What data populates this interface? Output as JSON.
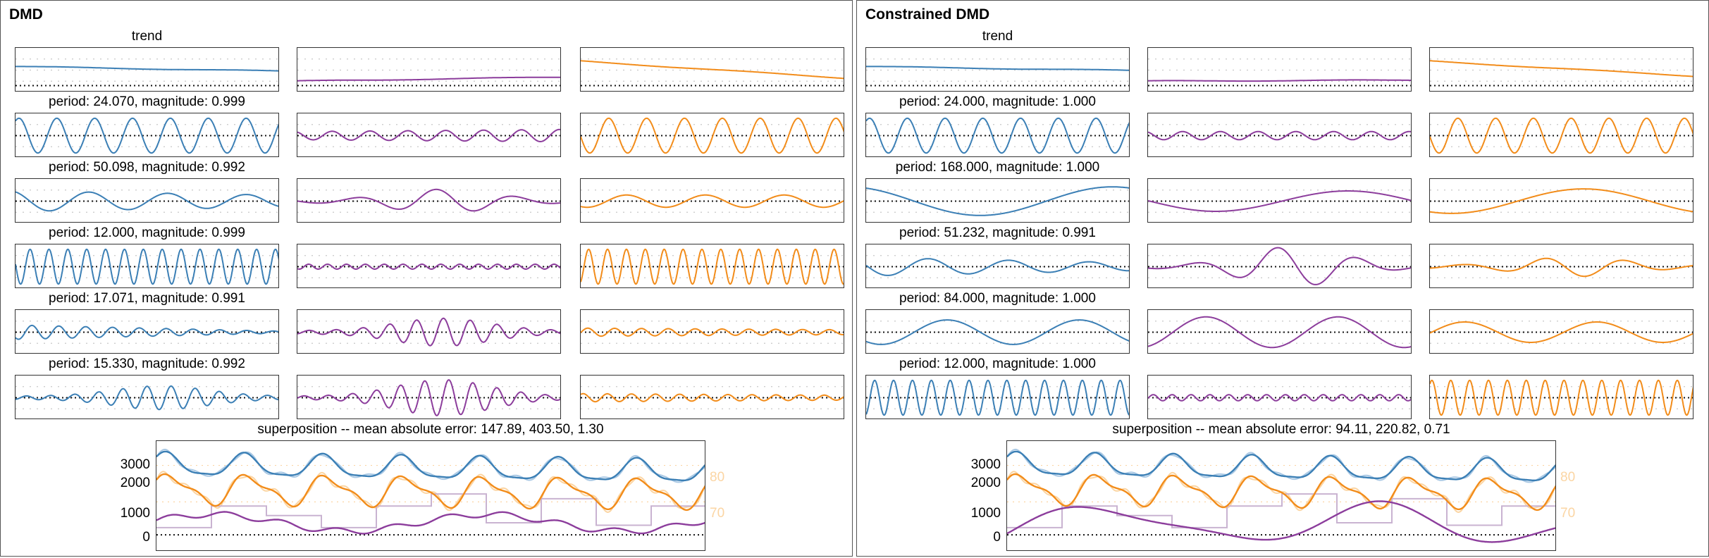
{
  "panels": [
    {
      "title": "DMD",
      "rows": [
        {
          "label": "trend",
          "kind": "trend",
          "trend": [
            [
              0.18,
              -0.05
            ],
            [
              -0.55,
              -0.35
            ],
            [
              0.45,
              -0.4
            ]
          ]
        },
        {
          "label": "period: 24.070, magnitude: 0.999",
          "period": 24.07,
          "amps": [
            [
              0.85,
              0.85
            ],
            [
              0.2,
              0.3
            ],
            [
              0.85,
              0.85
            ]
          ]
        },
        {
          "label": "period: 50.098, magnitude: 0.992",
          "period": 50.098,
          "amps": [
            [
              0.5,
              0.3
            ],
            [
              0.15,
              0.5
            ],
            [
              0.3,
              0.3
            ]
          ]
        },
        {
          "label": "period: 12.000, magnitude: 0.999",
          "period": 12.0,
          "amps": [
            [
              0.85,
              0.85
            ],
            [
              0.12,
              0.12
            ],
            [
              0.85,
              0.85
            ]
          ]
        },
        {
          "label": "period: 17.071, magnitude: 0.991",
          "period": 17.071,
          "amps": [
            [
              0.35,
              0.05
            ],
            [
              0.15,
              0.6
            ],
            [
              0.2,
              0.12
            ]
          ]
        },
        {
          "label": "period: 15.330, magnitude: 0.992",
          "period": 15.33,
          "amps": [
            [
              0.5,
              0.03
            ],
            [
              0.15,
              0.8
            ],
            [
              0.2,
              0.12
            ]
          ]
        }
      ],
      "super": {
        "label": "superposition -- mean absolute error: 147.89, 403.50, 1.30",
        "yticks": [
          {
            "v": 3000,
            "t": "3000"
          },
          {
            "v": 2000,
            "t": "2000"
          },
          {
            "v": 1000,
            "t": "1000"
          },
          {
            "v": 0,
            "t": "0"
          }
        ],
        "rticks": [
          {
            "v": 80,
            "t": "80"
          },
          {
            "v": 70,
            "t": "70"
          }
        ],
        "ylim": [
          -700,
          3900
        ]
      }
    },
    {
      "title": "Constrained DMD",
      "rows": [
        {
          "label": "trend",
          "kind": "trend",
          "trend": [
            [
              0.18,
              -0.02
            ],
            [
              -0.55,
              -0.5
            ],
            [
              0.45,
              -0.3
            ]
          ]
        },
        {
          "label": "period: 24.000, magnitude: 1.000",
          "period": 24.0,
          "amps": [
            [
              0.85,
              0.85
            ],
            [
              0.2,
              0.2
            ],
            [
              0.85,
              0.85
            ]
          ]
        },
        {
          "label": "period: 168.000, magnitude: 1.000",
          "period": 168.0,
          "amps": [
            [
              0.7,
              0.7
            ],
            [
              0.5,
              0.5
            ],
            [
              0.6,
              0.6
            ]
          ]
        },
        {
          "label": "period: 51.232, magnitude: 0.991",
          "period": 51.232,
          "amps": [
            [
              0.45,
              0.2
            ],
            [
              0.1,
              0.9
            ],
            [
              0.4,
              0.1
            ]
          ]
        },
        {
          "label": "period: 84.000, magnitude: 1.000",
          "period": 84.0,
          "amps": [
            [
              0.6,
              0.6
            ],
            [
              0.75,
              0.75
            ],
            [
              0.5,
              0.5
            ]
          ]
        },
        {
          "label": "period: 12.000, magnitude: 1.000",
          "period": 12.0,
          "amps": [
            [
              0.85,
              0.85
            ],
            [
              0.15,
              0.15
            ],
            [
              0.85,
              0.85
            ]
          ]
        }
      ],
      "super": {
        "label": "superposition -- mean absolute error: 94.11, 220.82, 0.71",
        "yticks": [
          {
            "v": 3000,
            "t": "3000"
          },
          {
            "v": 2000,
            "t": "2000"
          },
          {
            "v": 1000,
            "t": "1000"
          },
          {
            "v": 0,
            "t": "0"
          }
        ],
        "rticks": [
          {
            "v": 80,
            "t": "80"
          },
          {
            "v": 70,
            "t": "70"
          }
        ],
        "ylim": [
          -700,
          3900
        ]
      }
    }
  ],
  "colors": {
    "series_1": "#3b7fb5",
    "series_2": "#8c3d9c",
    "series_3": "#f28c1a",
    "series_1_light": "#a9c8e4",
    "series_3_light": "#fbd5a3",
    "series_2_light": "#c9b3d1"
  },
  "chart_data": [
    {
      "type": "line",
      "title": "DMD",
      "modes": [
        {
          "label": "trend"
        },
        {
          "label": "period: 24.070, magnitude: 0.999",
          "period": 24.07,
          "magnitude": 0.999
        },
        {
          "label": "period: 50.098, magnitude: 0.992",
          "period": 50.098,
          "magnitude": 0.992
        },
        {
          "label": "period: 12.000, magnitude: 0.999",
          "period": 12.0,
          "magnitude": 0.999
        },
        {
          "label": "period: 17.071, magnitude: 0.991",
          "period": 17.071,
          "magnitude": 0.991
        },
        {
          "label": "period: 15.330, magnitude: 0.992",
          "period": 15.33,
          "magnitude": 0.992
        }
      ],
      "superposition": {
        "mean_absolute_error": [
          147.89,
          403.5,
          1.3
        ],
        "yticks": [
          0,
          1000,
          2000,
          3000
        ],
        "right_yticks": [
          70,
          80
        ]
      }
    },
    {
      "type": "line",
      "title": "Constrained DMD",
      "modes": [
        {
          "label": "trend"
        },
        {
          "label": "period: 24.000, magnitude: 1.000",
          "period": 24.0,
          "magnitude": 1.0
        },
        {
          "label": "period: 168.000, magnitude: 1.000",
          "period": 168.0,
          "magnitude": 1.0
        },
        {
          "label": "period: 51.232, magnitude: 0.991",
          "period": 51.232,
          "magnitude": 0.991
        },
        {
          "label": "period: 84.000, magnitude: 1.000",
          "period": 84.0,
          "magnitude": 1.0
        },
        {
          "label": "period: 12.000, magnitude: 1.000",
          "period": 12.0,
          "magnitude": 1.0
        }
      ],
      "superposition": {
        "mean_absolute_error": [
          94.11,
          220.82,
          0.71
        ],
        "yticks": [
          0,
          1000,
          2000,
          3000
        ],
        "right_yticks": [
          70,
          80
        ]
      }
    }
  ]
}
